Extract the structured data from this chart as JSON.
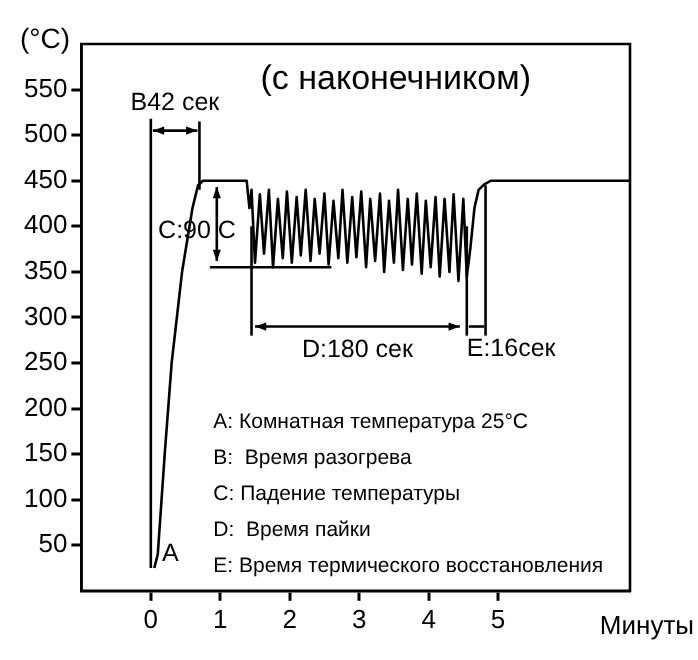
{
  "chart_data": {
    "type": "line",
    "title": "(с наконечником)",
    "ylabel": "(°C)",
    "xlabel": "Минуты",
    "x": [
      0.05,
      0.1,
      0.2,
      0.3,
      0.45,
      0.6,
      0.68,
      0.75,
      1.38,
      1.42,
      1.45,
      1.5,
      1.57,
      1.63,
      1.7,
      1.76,
      1.83,
      1.9,
      1.96,
      2.03,
      2.1,
      2.16,
      2.23,
      2.3,
      2.36,
      2.43,
      2.5,
      2.56,
      2.63,
      2.7,
      2.76,
      2.83,
      2.9,
      2.96,
      3.03,
      3.1,
      3.16,
      3.23,
      3.3,
      3.36,
      3.43,
      3.5,
      3.56,
      3.63,
      3.7,
      3.76,
      3.83,
      3.9,
      3.96,
      4.03,
      4.1,
      4.16,
      4.23,
      4.3,
      4.36,
      4.43,
      4.5,
      4.55,
      4.6,
      4.66,
      4.72,
      4.8,
      4.9,
      6.9
    ],
    "series": [
      {
        "color": "#000000",
        "values": [
          25,
          40,
          150,
          250,
          350,
          420,
          445,
          450,
          450,
          420,
          440,
          360,
          435,
          370,
          440,
          355,
          430,
          365,
          438,
          360,
          432,
          368,
          440,
          362,
          430,
          370,
          436,
          358,
          428,
          365,
          440,
          360,
          432,
          366,
          438,
          355,
          430,
          362,
          436,
          350,
          428,
          360,
          440,
          352,
          430,
          358,
          436,
          348,
          428,
          355,
          432,
          345,
          430,
          350,
          435,
          340,
          430,
          345,
          375,
          420,
          440,
          446,
          450,
          450
        ]
      }
    ],
    "xlim": [
      -1,
      6.9
    ],
    "ylim": [
      0,
      600
    ],
    "xticks": [
      0,
      1,
      2,
      3,
      4,
      5
    ],
    "yticks": [
      50,
      100,
      150,
      200,
      250,
      300,
      350,
      400,
      450,
      500,
      550
    ],
    "grid": false,
    "ref_lines": [
      {
        "axis": "x",
        "value": 0
      }
    ],
    "legend": false,
    "marker": "none",
    "line_style": "solid",
    "annotations": [
      {
        "text": "B42 сек",
        "x": 0.75,
        "y": 450
      },
      {
        "text": "C:90 C",
        "x": 1.5,
        "y": 360
      },
      "D:180 сек",
      {
        "text": "E:16сек",
        "x": 4.9,
        "y": 450
      },
      {
        "text": "A",
        "x": 0.05,
        "y": 25
      },
      "A: Комнатная температура 25°C",
      "B:  Время разогрева",
      "C: Падение температуры",
      "D:  Время пайки",
      "E: Время термического восстановления"
    ]
  }
}
